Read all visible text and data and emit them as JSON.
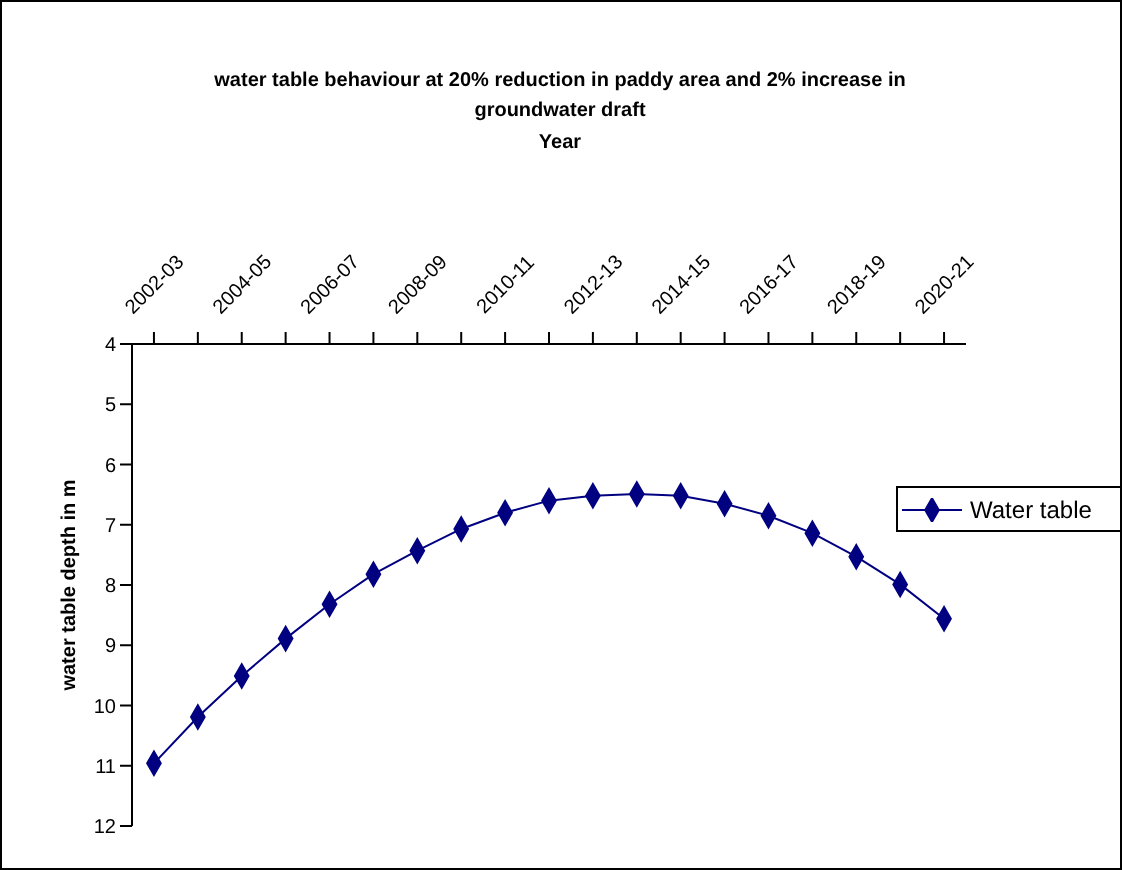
{
  "chart_data": {
    "type": "line",
    "title": "water table behaviour at 20% reduction in paddy area and 2% increase in groundwater draft",
    "x2label": "Year",
    "ylabel": "water table depth in m",
    "categories": [
      "2002-03",
      null,
      "2004-05",
      null,
      "2006-07",
      null,
      "2008-09",
      null,
      "2010-11",
      null,
      "2012-13",
      null,
      "2014-15",
      null,
      "2016-17",
      null,
      "2018-19",
      null,
      "2020-21"
    ],
    "series": [
      {
        "name": "Water table",
        "color": "#000080",
        "values": [
          10.96,
          10.19,
          9.51,
          8.89,
          8.32,
          7.82,
          7.43,
          7.07,
          6.8,
          6.6,
          6.52,
          6.49,
          6.52,
          6.65,
          6.85,
          7.14,
          7.53,
          7.99,
          8.56
        ]
      }
    ],
    "ylim": [
      12,
      4
    ],
    "yticks": [
      4,
      5,
      6,
      7,
      8,
      9,
      10,
      11,
      12
    ],
    "grid": false,
    "legend": "right",
    "marker": "diamond",
    "line_style": "solid"
  }
}
